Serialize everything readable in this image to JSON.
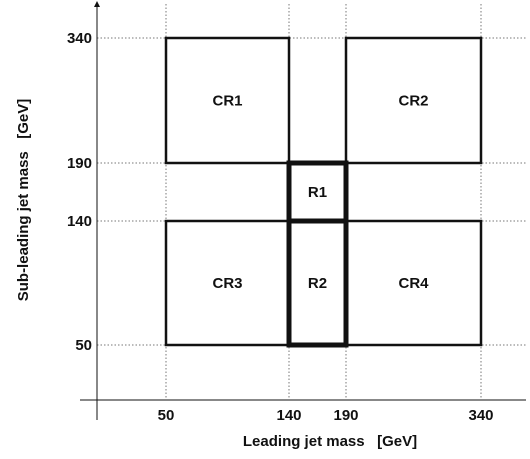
{
  "diagram": {
    "x_axis": {
      "title": "Leading jet mass   [GeV]",
      "ticks": [
        {
          "value": 50,
          "label": "50"
        },
        {
          "value": 140,
          "label": "140"
        },
        {
          "value": 190,
          "label": "190"
        },
        {
          "value": 340,
          "label": "340"
        }
      ]
    },
    "y_axis": {
      "title": "Sub-leading jet mass   [GeV]",
      "ticks": [
        {
          "value": 50,
          "label": "50"
        },
        {
          "value": 140,
          "label": "140"
        },
        {
          "value": 190,
          "label": "190"
        },
        {
          "value": 340,
          "label": "340"
        }
      ]
    },
    "regions": [
      {
        "label": "CR1",
        "x": [
          50,
          140
        ],
        "y": [
          190,
          340
        ],
        "emphasis": "normal"
      },
      {
        "label": "CR2",
        "x": [
          190,
          340
        ],
        "y": [
          190,
          340
        ],
        "emphasis": "normal"
      },
      {
        "label": "R1",
        "x": [
          140,
          190
        ],
        "y": [
          140,
          190
        ],
        "emphasis": "bold"
      },
      {
        "label": "CR3",
        "x": [
          50,
          140
        ],
        "y": [
          50,
          140
        ],
        "emphasis": "normal"
      },
      {
        "label": "R2",
        "x": [
          140,
          190
        ],
        "y": [
          50,
          140
        ],
        "emphasis": "bold"
      },
      {
        "label": "CR4",
        "x": [
          190,
          340
        ],
        "y": [
          50,
          140
        ],
        "emphasis": "normal"
      }
    ],
    "gridlines": "dotted",
    "colors": {
      "ink": "#111111",
      "grid": "#777777",
      "background": "#ffffff"
    }
  }
}
